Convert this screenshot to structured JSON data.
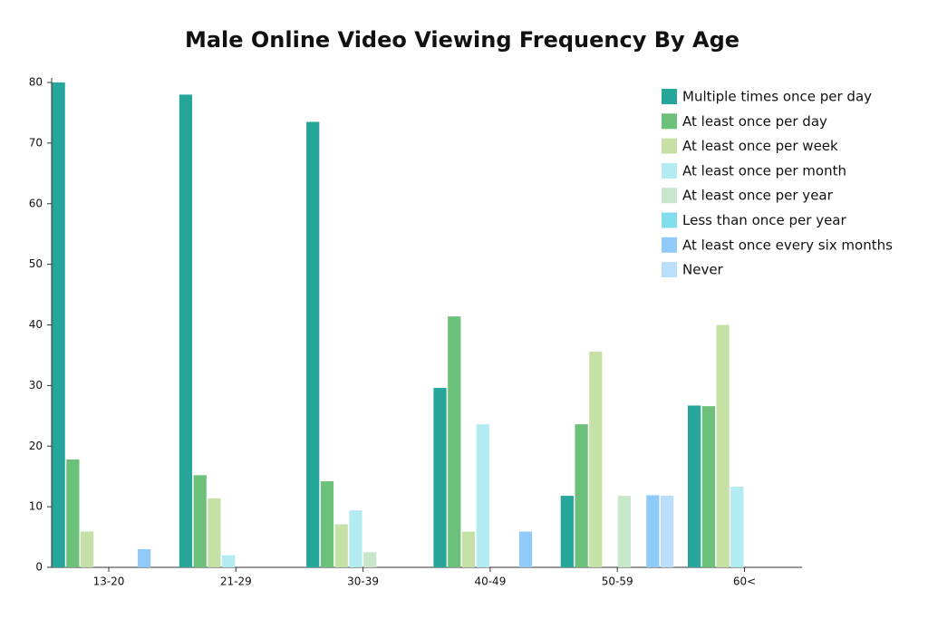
{
  "chart_data": {
    "type": "bar",
    "title": "Male Online Video Viewing Frequency By Age",
    "categories": [
      "13-20",
      "21-29",
      "30-39",
      "40-49",
      "50-59",
      "60<"
    ],
    "series": [
      {
        "name": "Multiple times once per day",
        "color": "#26a69a",
        "values": [
          80,
          78,
          73.5,
          29.6,
          11.8,
          26.7
        ]
      },
      {
        "name": "At least once per day",
        "color": "#6cc17a",
        "values": [
          17.8,
          15.2,
          14.2,
          41.4,
          23.6,
          26.6
        ]
      },
      {
        "name": "At least once per week",
        "color": "#c5e1a5",
        "values": [
          5.9,
          11.4,
          7.1,
          5.9,
          35.6,
          40
        ]
      },
      {
        "name": "At least once per month",
        "color": "#b2ebf2",
        "values": [
          0,
          2,
          9.4,
          23.6,
          0,
          13.3
        ]
      },
      {
        "name": "At least once per year",
        "color": "#c8e6c9",
        "values": [
          0,
          0,
          2.5,
          0,
          11.8,
          0
        ]
      },
      {
        "name": "Less than once per year",
        "color": "#80deea",
        "values": [
          0,
          0,
          0,
          0,
          0,
          0
        ]
      },
      {
        "name": "At least once every six months",
        "color": "#90caf9",
        "values": [
          3,
          0,
          0,
          5.9,
          11.9,
          0
        ]
      },
      {
        "name": "Never",
        "color": "#bbdefb",
        "values": [
          0,
          0,
          0,
          0,
          11.8,
          0
        ]
      }
    ],
    "ylim": [
      0,
      80
    ],
    "yticks": [
      0,
      10,
      20,
      30,
      40,
      50,
      60,
      70,
      80
    ],
    "grid": false,
    "legend": "top-right"
  }
}
